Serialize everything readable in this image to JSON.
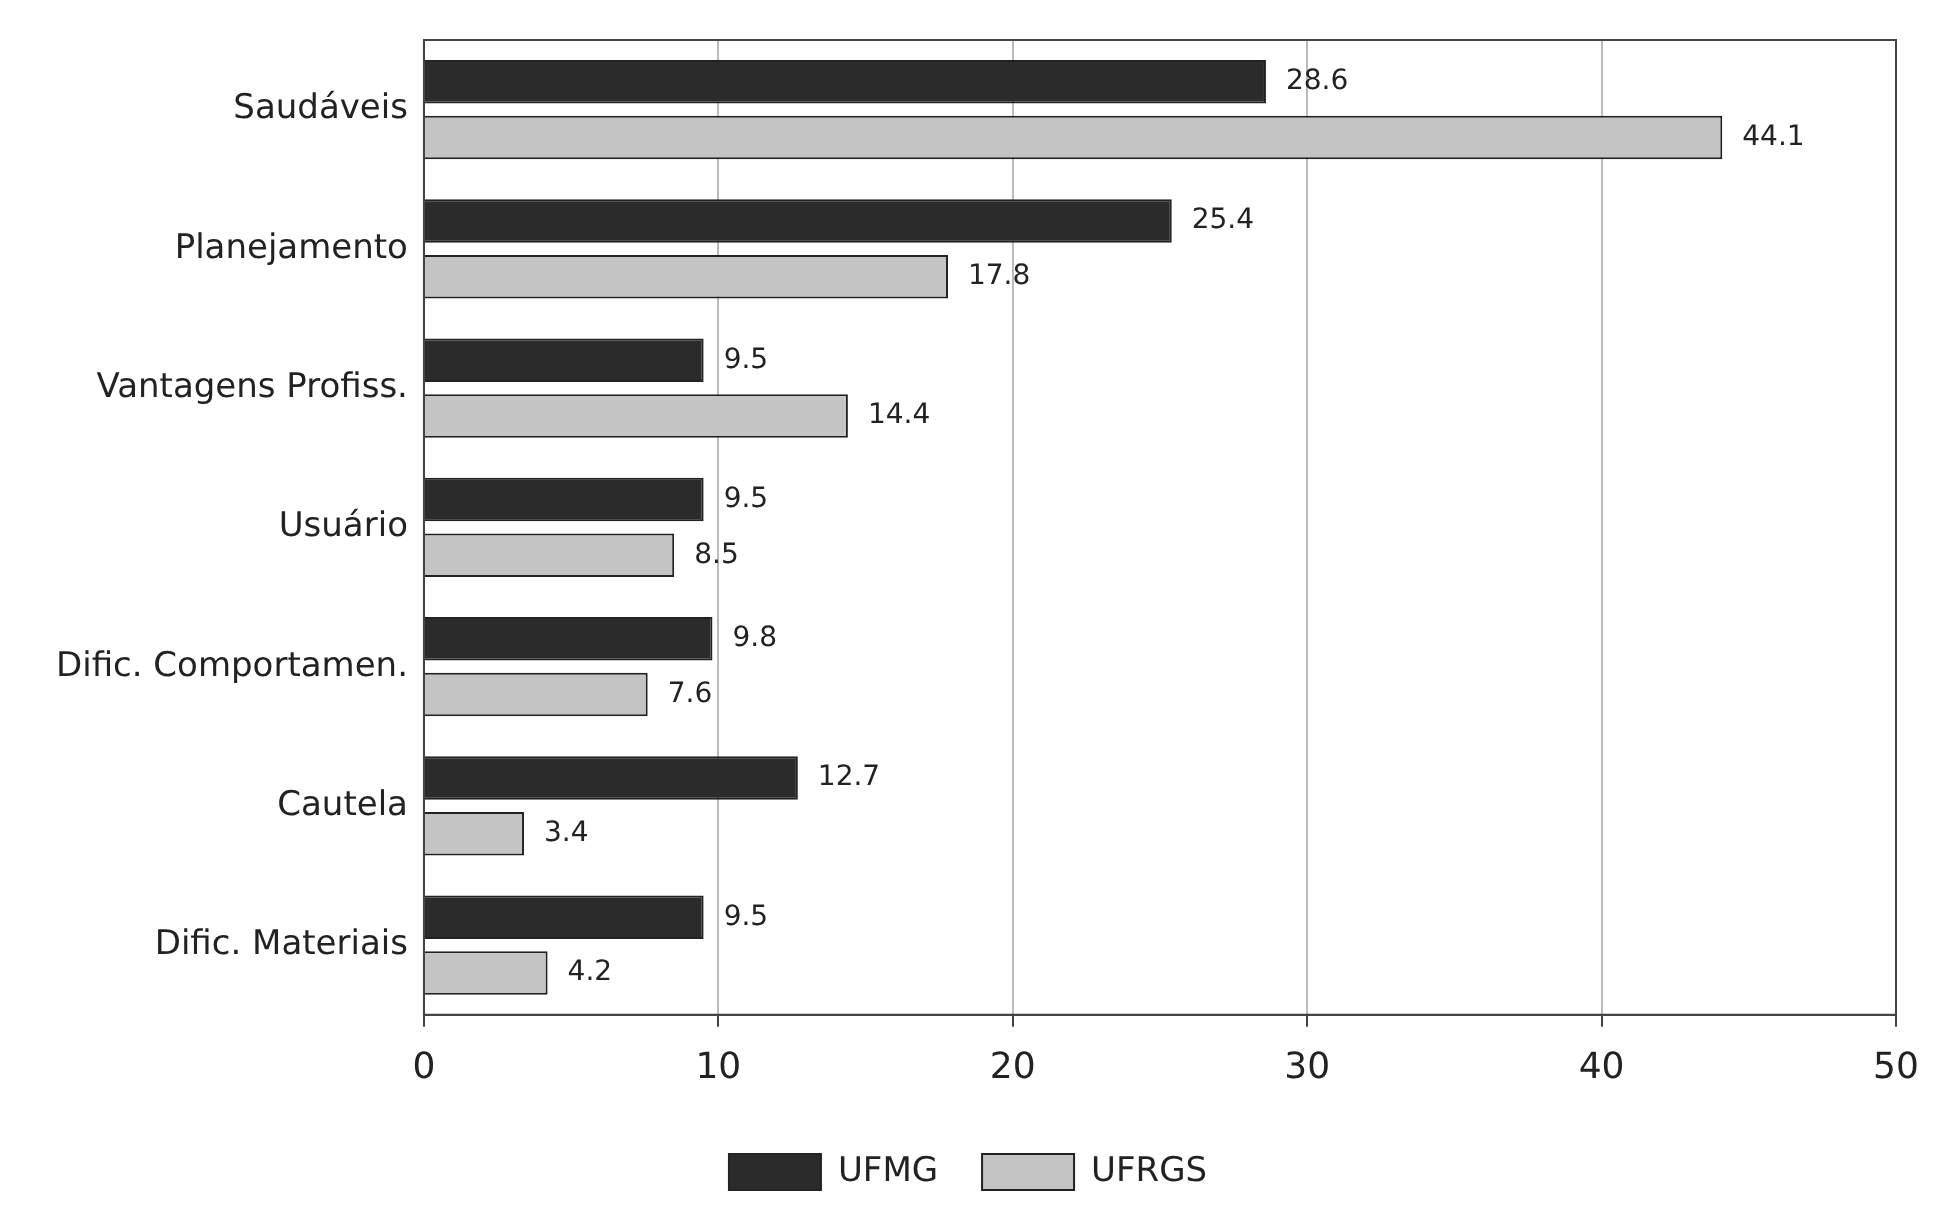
{
  "chart_data": {
    "type": "bar",
    "orientation": "horizontal",
    "categories": [
      "Saudáveis",
      "Planejamento",
      "Vantagens Profiss.",
      "Usuário",
      "Dific. Comportamen.",
      "Cautela",
      "Dific. Materiais"
    ],
    "series": [
      {
        "name": "UFMG",
        "color": "#2b2b2b",
        "values": [
          28.6,
          25.4,
          9.5,
          9.5,
          9.8,
          12.7,
          9.5
        ]
      },
      {
        "name": "UFRGS",
        "color": "#c4c4c4",
        "values": [
          44.1,
          17.8,
          14.4,
          8.5,
          7.6,
          3.4,
          4.2
        ]
      }
    ],
    "xlim": [
      0,
      50
    ],
    "xticks": [
      0,
      10,
      20,
      30,
      40,
      50
    ],
    "grid": "x",
    "legend": "bottom",
    "data_labels": true
  }
}
